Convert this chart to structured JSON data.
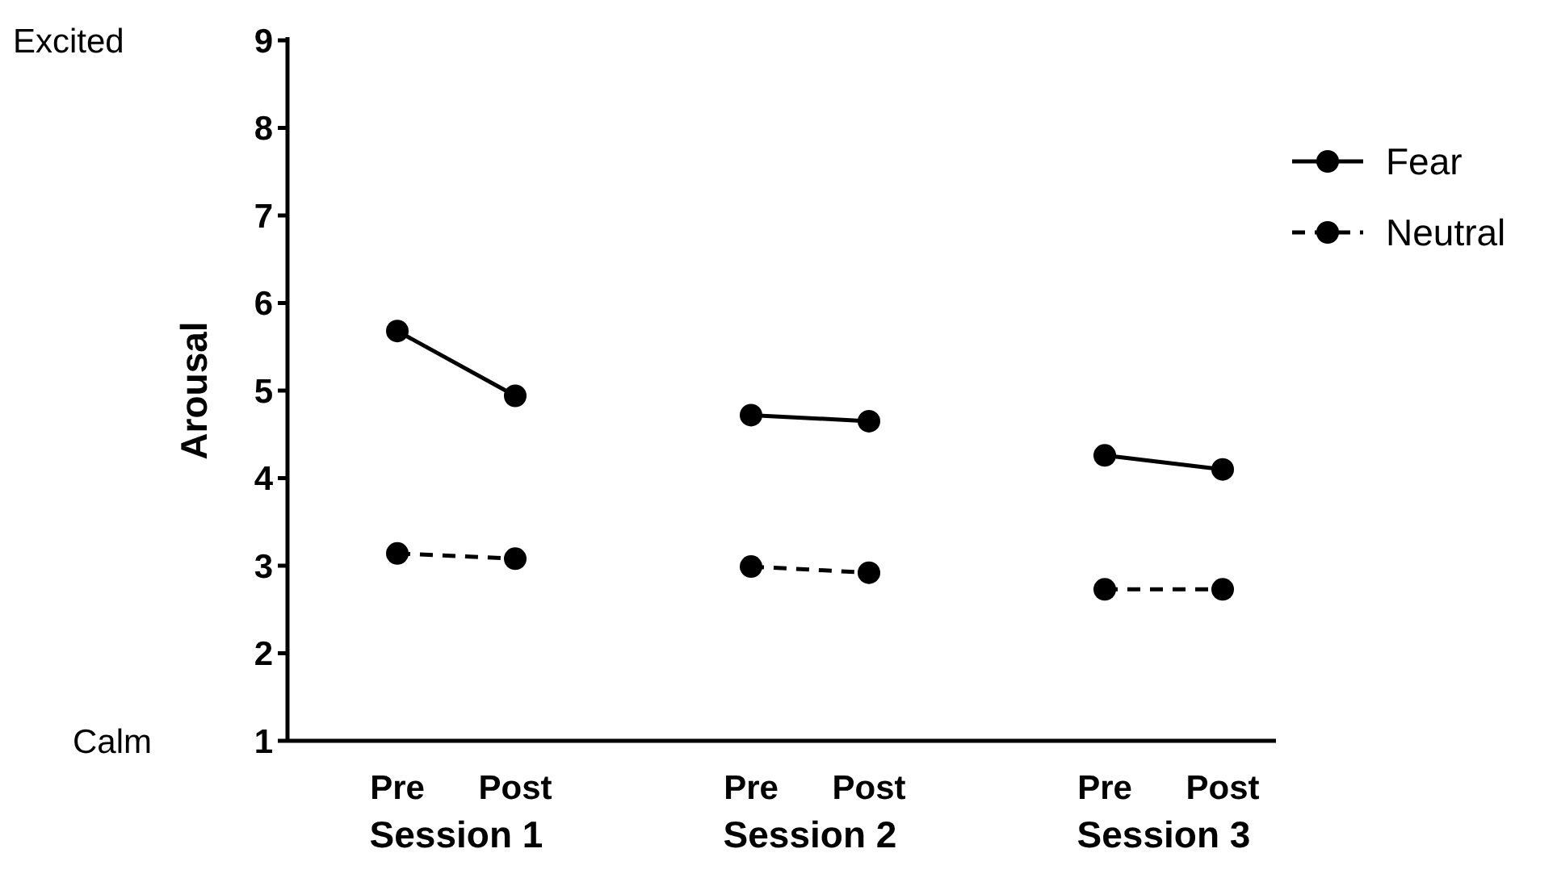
{
  "chart_data": {
    "type": "line",
    "ylabel": "Arousal",
    "categories": [
      "Pre",
      "Post",
      null,
      "Pre",
      "Post",
      null,
      "Pre",
      "Post"
    ],
    "series": [
      {
        "name": "Fear",
        "color": "#000000",
        "line_style": "solid",
        "values": [
          5.68,
          4.94,
          null,
          4.72,
          4.65,
          null,
          4.26,
          4.1
        ]
      },
      {
        "name": "Neutral",
        "color": "#000000",
        "line_style": "dashed",
        "values": [
          3.14,
          3.08,
          null,
          2.99,
          2.92,
          null,
          2.73,
          2.73
        ]
      }
    ],
    "ylim": [
      1,
      9
    ],
    "yticks": [
      1,
      2,
      3,
      4,
      5,
      6,
      7,
      8,
      9
    ],
    "marker": "circle",
    "legend": "top right",
    "grid": false,
    "annotations": [
      "Excited",
      "Calm",
      "Session 1",
      "Session 2",
      "Session 3"
    ]
  }
}
